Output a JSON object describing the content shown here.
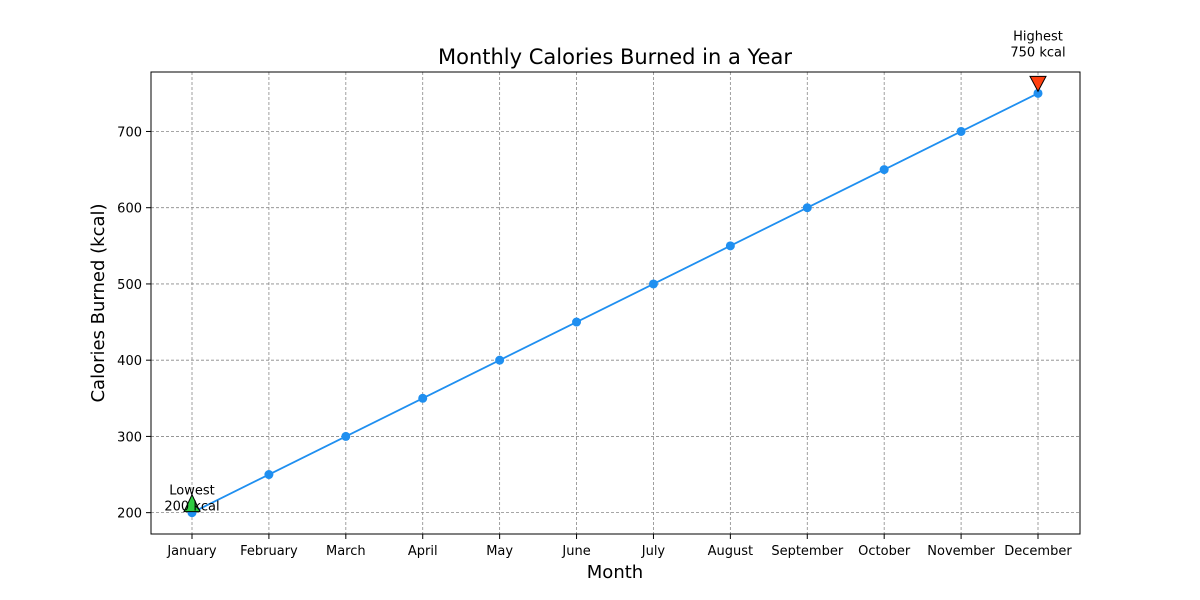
{
  "chart_data": {
    "type": "line",
    "title": "Monthly Calories Burned in a Year",
    "xlabel": "Month",
    "ylabel": "Calories Burned (kcal)",
    "categories": [
      "January",
      "February",
      "March",
      "April",
      "May",
      "June",
      "July",
      "August",
      "September",
      "October",
      "November",
      "December"
    ],
    "series": [
      {
        "values": [
          200,
          250,
          300,
          350,
          400,
          450,
          500,
          550,
          600,
          650,
          700,
          750
        ],
        "color": "#1f8ff0",
        "marker": "circle"
      }
    ],
    "ylim": [
      172,
      778
    ],
    "yticks": [
      200,
      300,
      400,
      500,
      600,
      700
    ],
    "grid": true,
    "annotations": [
      {
        "category": "January",
        "value": 200,
        "line1": "Lowest",
        "line2": "200 kcal",
        "marker": "triangle-up",
        "color": "#2ecc40"
      },
      {
        "category": "December",
        "value": 750,
        "line1": "Highest",
        "line2": "750 kcal",
        "marker": "triangle-down",
        "color": "#ff4010"
      }
    ]
  }
}
